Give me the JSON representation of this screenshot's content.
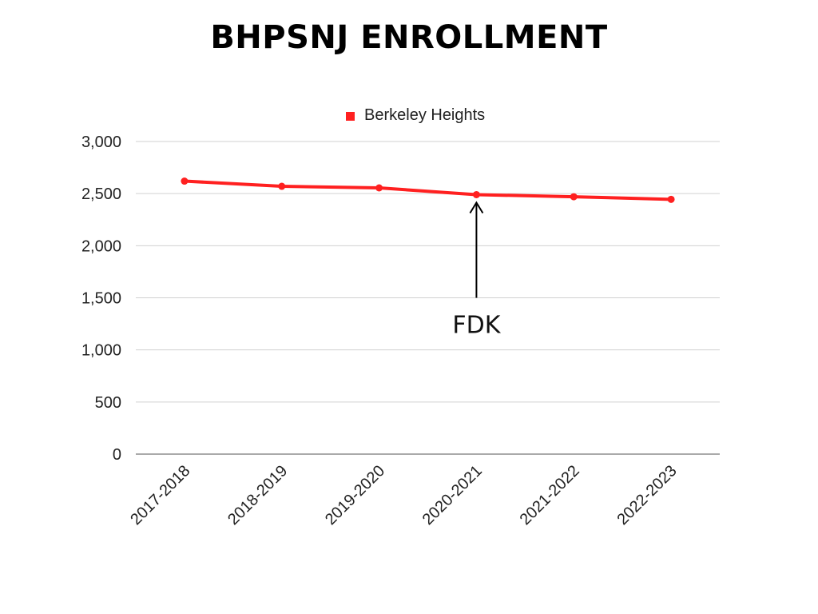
{
  "chart_data": {
    "type": "line",
    "title": "BHPSNJ ENROLLMENT",
    "categories": [
      "2017-2018",
      "2018-2019",
      "2019-2020",
      "2020-2021",
      "2021-2022",
      "2022-2023"
    ],
    "series": [
      {
        "name": "Berkeley Heights",
        "values": [
          2620,
          2570,
          2555,
          2490,
          2470,
          2445
        ],
        "color": "#ff2020"
      }
    ],
    "yticks": [
      "0",
      "500",
      "1,000",
      "1,500",
      "2,000",
      "2,500",
      "3,000"
    ],
    "ylim": [
      0,
      3000
    ],
    "grid": true,
    "legend": "top",
    "annotation": {
      "text": "FDK",
      "category": "2020-2021"
    }
  }
}
